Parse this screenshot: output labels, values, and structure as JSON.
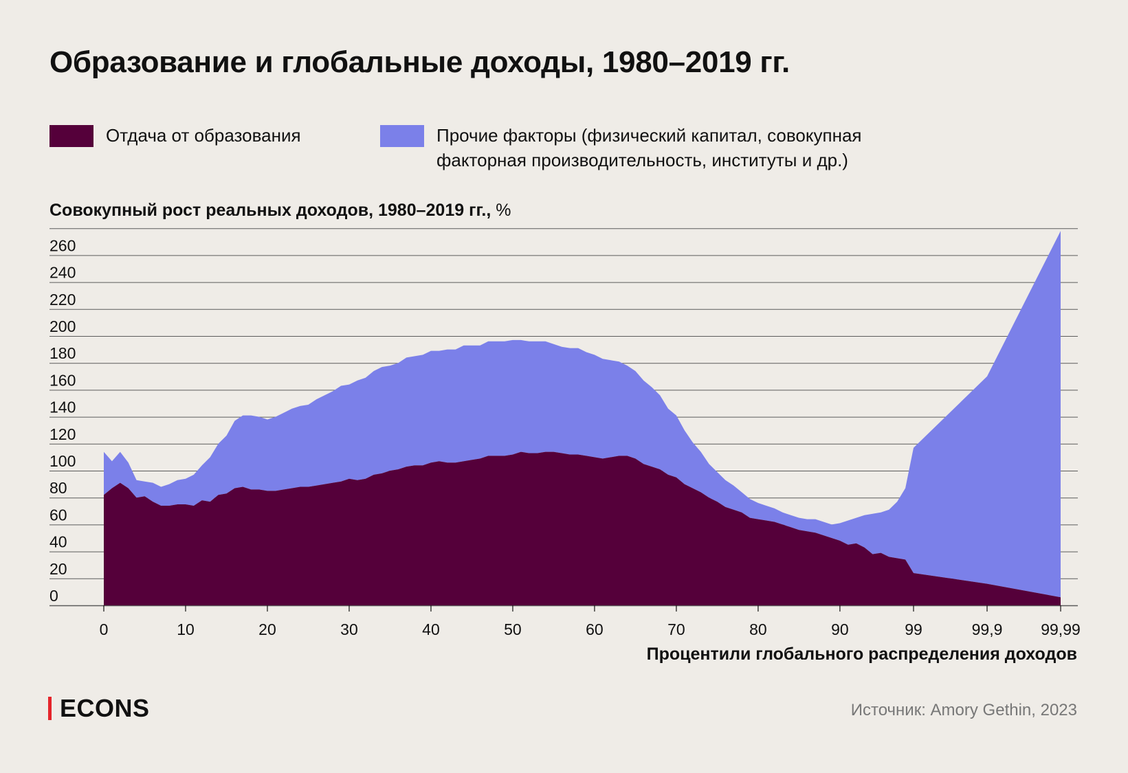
{
  "title": "Образование и глобальные доходы, 1980–2019 гг.",
  "legend": [
    {
      "label": "Отдача от образования",
      "color": "#55003a"
    },
    {
      "label": "Прочие факторы (физический капитал, совокупная факторная производительность, институты и др.)",
      "color": "#7b80e9"
    }
  ],
  "ylabel": {
    "main": "Совокупный рост реальных доходов, 1980–2019 гг.,",
    "unit": " %"
  },
  "xlabel": "Процентили глобального распределения доходов",
  "brand": "ECONS",
  "source": "Источник: Amory Gethin, 2023",
  "chart_data": {
    "type": "area",
    "stacked": true,
    "x": [
      0,
      1,
      2,
      3,
      4,
      5,
      6,
      7,
      8,
      9,
      10,
      11,
      12,
      13,
      14,
      15,
      16,
      17,
      18,
      19,
      20,
      21,
      22,
      23,
      24,
      25,
      26,
      27,
      28,
      29,
      30,
      31,
      32,
      33,
      34,
      35,
      36,
      37,
      38,
      39,
      40,
      41,
      42,
      43,
      44,
      45,
      46,
      47,
      48,
      49,
      50,
      51,
      52,
      53,
      54,
      55,
      56,
      57,
      58,
      59,
      60,
      61,
      62,
      63,
      64,
      65,
      66,
      67,
      68,
      69,
      70,
      71,
      72,
      73,
      74,
      75,
      76,
      77,
      78,
      79,
      80,
      81,
      82,
      83,
      84,
      85,
      86,
      87,
      88,
      89,
      90,
      91,
      92,
      93,
      94,
      95,
      96,
      97,
      98,
      99,
      "99,9",
      "99,99"
    ],
    "series": [
      {
        "name": "Отдача от образования",
        "color": "#55003a",
        "values": [
          82,
          87,
          91,
          87,
          80,
          81,
          77,
          74,
          74,
          75,
          75,
          74,
          78,
          77,
          82,
          83,
          87,
          88,
          86,
          86,
          85,
          85,
          86,
          87,
          88,
          88,
          89,
          90,
          91,
          92,
          94,
          93,
          94,
          97,
          98,
          100,
          101,
          103,
          104,
          104,
          106,
          107,
          106,
          106,
          107,
          108,
          109,
          111,
          111,
          111,
          112,
          114,
          113,
          113,
          114,
          114,
          113,
          112,
          112,
          111,
          110,
          109,
          110,
          111,
          111,
          109,
          105,
          103,
          101,
          97,
          95,
          90,
          87,
          84,
          80,
          77,
          73,
          71,
          69,
          65,
          64,
          63,
          62,
          60,
          58,
          56,
          55,
          54,
          52,
          50,
          48,
          45,
          46,
          43,
          38,
          39,
          36,
          35,
          34,
          24,
          16,
          6
        ]
      },
      {
        "name": "Прочие факторы (физический капитал, совокупная факторная производительность, институты и др.)",
        "color": "#7b80e9",
        "values": [
          32,
          20,
          23,
          19,
          13,
          11,
          14,
          14,
          16,
          18,
          19,
          23,
          26,
          33,
          38,
          43,
          50,
          53,
          55,
          54,
          53,
          55,
          57,
          59,
          60,
          61,
          64,
          66,
          68,
          71,
          70,
          74,
          75,
          77,
          79,
          78,
          79,
          81,
          81,
          82,
          83,
          82,
          84,
          84,
          86,
          85,
          84,
          85,
          85,
          85,
          85,
          83,
          83,
          83,
          82,
          80,
          79,
          79,
          79,
          77,
          76,
          74,
          72,
          70,
          67,
          65,
          62,
          59,
          55,
          49,
          46,
          40,
          34,
          30,
          25,
          22,
          20,
          18,
          15,
          14,
          12,
          11,
          10,
          9,
          9,
          9,
          9,
          10,
          10,
          10,
          13,
          18,
          19,
          24,
          30,
          30,
          35,
          42,
          53,
          93,
          154,
          272
        ]
      }
    ],
    "ylim": [
      0,
      280
    ],
    "yticks": [
      0,
      20,
      40,
      60,
      80,
      100,
      120,
      140,
      160,
      180,
      200,
      220,
      240,
      260
    ],
    "xtick_labels": [
      "0",
      "10",
      "20",
      "30",
      "40",
      "50",
      "60",
      "70",
      "80",
      "90",
      "99",
      "99,9",
      "99,99"
    ],
    "legend_position": "top",
    "grid": true
  }
}
